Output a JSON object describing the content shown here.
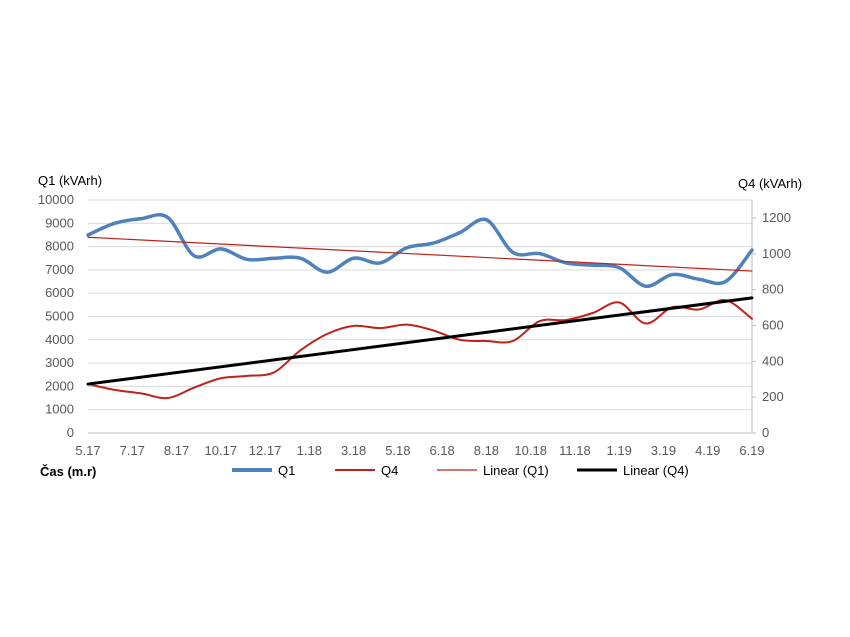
{
  "chart_data": {
    "type": "line",
    "x_axis_label": "Čas (m.r)",
    "y_left_label": "Q1 (kVArh)",
    "y_right_label": "Q4 (kVArh)",
    "y_left_range": [
      0,
      10000
    ],
    "y_left_ticks": [
      "0",
      "1000",
      "2000",
      "3000",
      "4000",
      "5000",
      "6000",
      "7000",
      "8000",
      "9000",
      "10000"
    ],
    "y_right_range": [
      0,
      1300
    ],
    "y_right_ticks": [
      "0",
      "200",
      "400",
      "600",
      "800",
      "1000",
      "1200"
    ],
    "x_tick_labels": [
      "5.17",
      "7.17",
      "8.17",
      "10.17",
      "12.17",
      "1.18",
      "3.18",
      "5.18",
      "6.18",
      "8.18",
      "10.18",
      "11.18",
      "1.19",
      "3.19",
      "4.19",
      "6.19"
    ],
    "grid": "horizontal",
    "legend_position": "bottom",
    "legend": [
      "Q1",
      "Q4",
      "Linear (Q1)",
      "Linear (Q4)"
    ],
    "colors": {
      "Q1": "#4f81bd",
      "Q4": "#c0221b",
      "Linear (Q1)": "#c0221b",
      "Linear (Q4)": "#000000",
      "grid": "#d9d9d9"
    },
    "series": [
      {
        "name": "Q1",
        "axis": "left",
        "values": [
          8500,
          9000,
          9200,
          9250,
          7600,
          7900,
          7450,
          7500,
          7500,
          6900,
          7500,
          7300,
          7950,
          8150,
          8600,
          9150,
          7750,
          7700,
          7300,
          7200,
          7100,
          6300,
          6800,
          6600,
          6500,
          7850
        ]
      },
      {
        "name": "Q4",
        "axis": "left",
        "values": [
          2100,
          1850,
          1700,
          1500,
          1950,
          2350,
          2450,
          2600,
          3550,
          4250,
          4600,
          4500,
          4650,
          4400,
          4000,
          3950,
          3950,
          4800,
          4850,
          5150,
          5600,
          4700,
          5400,
          5300,
          5700,
          4900
        ]
      },
      {
        "name": "Linear (Q1)",
        "axis": "left",
        "trend": true,
        "values": [
          8400,
          6950
        ]
      },
      {
        "name": "Linear (Q4)",
        "axis": "left",
        "trend": true,
        "values": [
          2100,
          5800
        ]
      }
    ]
  }
}
